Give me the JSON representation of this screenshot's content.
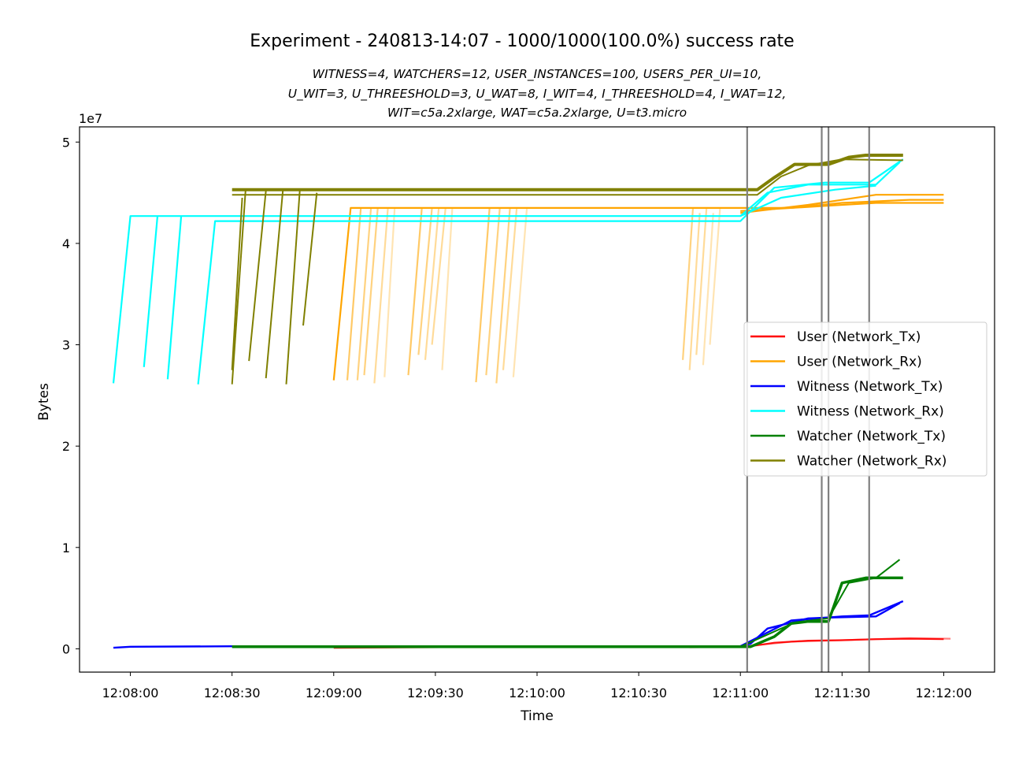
{
  "chart_data": {
    "type": "line",
    "title": "Experiment - 240813-14:07 - 1000/1000(100.0%) success rate",
    "subtitle_lines": [
      "WITNESS=4, WATCHERS=12, USER_INSTANCES=100, USERS_PER_UI=10,",
      "U_WIT=3, U_THREESHOLD=3, U_WAT=8, I_WIT=4, I_THREESHOLD=4, I_WAT=12,",
      "WIT=c5a.2xlarge, WAT=c5a.2xlarge, U=t3.micro"
    ],
    "xlabel": "Time",
    "ylabel": "Bytes",
    "y_offset_label": "1e7",
    "xlim": [
      "12:07:45",
      "12:12:15"
    ],
    "ylim": [
      -2300000,
      51500000
    ],
    "x_ticks": [
      "12:08:00",
      "12:08:30",
      "12:09:00",
      "12:09:30",
      "12:10:00",
      "12:10:30",
      "12:11:00",
      "12:11:30",
      "12:12:00"
    ],
    "y_ticks": [
      {
        "value": 0,
        "label": "0"
      },
      {
        "value": 10000000,
        "label": "1"
      },
      {
        "value": 20000000,
        "label": "2"
      },
      {
        "value": 30000000,
        "label": "3"
      },
      {
        "value": 40000000,
        "label": "4"
      },
      {
        "value": 50000000,
        "label": "5"
      }
    ],
    "grid": false,
    "legend_position": "right",
    "vlines": [
      "12:11:02",
      "12:11:24",
      "12:11:26",
      "12:11:38"
    ],
    "vline_color": "#808080",
    "series": [
      {
        "name": "User (Network_Tx)",
        "color": "#ff0000",
        "lines": [
          {
            "w": 2.2,
            "o": 0.9,
            "pts": [
              [
                "12:09:00",
                100000
              ],
              [
                "12:10:00",
                200000
              ],
              [
                "12:11:03",
                250000
              ],
              [
                "12:11:10",
                600000
              ],
              [
                "12:11:20",
                800000
              ],
              [
                "12:11:30",
                850000
              ],
              [
                "12:11:40",
                950000
              ],
              [
                "12:11:50",
                1000000
              ],
              [
                "12:12:00",
                950000
              ]
            ]
          },
          {
            "w": 2.2,
            "o": 0.5,
            "pts": [
              [
                "12:10:45",
                150000
              ],
              [
                "12:11:00",
                200000
              ],
              [
                "12:11:15",
                700000
              ],
              [
                "12:11:35",
                900000
              ],
              [
                "12:11:50",
                1050000
              ],
              [
                "12:12:02",
                1000000
              ]
            ]
          }
        ]
      },
      {
        "name": "User (Network_Rx)",
        "color": "#ffa500",
        "lines": [
          {
            "w": 2.2,
            "o": 1.0,
            "pts": [
              [
                "12:09:00",
                26500000
              ],
              [
                "12:09:05",
                43500000
              ],
              [
                "12:11:00",
                43500000
              ],
              [
                "12:11:15",
                43500000
              ],
              [
                "12:11:30",
                44000000
              ],
              [
                "12:11:50",
                44300000
              ],
              [
                "12:12:00",
                44300000
              ]
            ]
          },
          {
            "w": 2.2,
            "o": 1.0,
            "pts": [
              [
                "12:11:00",
                43000000
              ],
              [
                "12:11:20",
                43800000
              ],
              [
                "12:11:40",
                44800000
              ],
              [
                "12:12:00",
                44800000
              ]
            ]
          },
          {
            "w": 2.2,
            "o": 1.0,
            "pts": [
              [
                "12:11:00",
                43200000
              ],
              [
                "12:11:25",
                43700000
              ],
              [
                "12:11:40",
                44000000
              ],
              [
                "12:12:00",
                44000000
              ]
            ]
          },
          {
            "w": 2.2,
            "o": 0.6,
            "pts": [
              [
                "12:09:04",
                26500000
              ],
              [
                "12:09:08",
                43500000
              ]
            ]
          },
          {
            "w": 2.2,
            "o": 0.5,
            "pts": [
              [
                "12:09:07",
                26500000
              ],
              [
                "12:09:11",
                43500000
              ]
            ]
          },
          {
            "w": 2.2,
            "o": 0.5,
            "pts": [
              [
                "12:09:09",
                27000000
              ],
              [
                "12:09:13",
                43500000
              ]
            ]
          },
          {
            "w": 2.2,
            "o": 0.4,
            "pts": [
              [
                "12:09:12",
                26200000
              ],
              [
                "12:09:16",
                43500000
              ]
            ]
          },
          {
            "w": 2.2,
            "o": 0.3,
            "pts": [
              [
                "12:09:15",
                26800000
              ],
              [
                "12:09:18",
                43500000
              ]
            ]
          },
          {
            "w": 2.2,
            "o": 0.6,
            "pts": [
              [
                "12:09:22",
                27000000
              ],
              [
                "12:09:26",
                43500000
              ]
            ]
          },
          {
            "w": 2.2,
            "o": 0.5,
            "pts": [
              [
                "12:09:25",
                29000000
              ],
              [
                "12:09:29",
                43500000
              ]
            ]
          },
          {
            "w": 2.2,
            "o": 0.4,
            "pts": [
              [
                "12:09:27",
                28500000
              ],
              [
                "12:09:31",
                43500000
              ]
            ]
          },
          {
            "w": 2.2,
            "o": 0.4,
            "pts": [
              [
                "12:09:29",
                30000000
              ],
              [
                "12:09:33",
                43500000
              ]
            ]
          },
          {
            "w": 2.2,
            "o": 0.3,
            "pts": [
              [
                "12:09:32",
                27500000
              ],
              [
                "12:09:35",
                43500000
              ]
            ]
          },
          {
            "w": 2.2,
            "o": 0.6,
            "pts": [
              [
                "12:09:42",
                26300000
              ],
              [
                "12:09:46",
                43500000
              ]
            ]
          },
          {
            "w": 2.2,
            "o": 0.5,
            "pts": [
              [
                "12:09:45",
                27000000
              ],
              [
                "12:09:49",
                43500000
              ]
            ]
          },
          {
            "w": 2.2,
            "o": 0.5,
            "pts": [
              [
                "12:09:48",
                26200000
              ],
              [
                "12:09:52",
                43500000
              ]
            ]
          },
          {
            "w": 2.2,
            "o": 0.4,
            "pts": [
              [
                "12:09:50",
                27500000
              ],
              [
                "12:09:54",
                43500000
              ]
            ]
          },
          {
            "w": 2.2,
            "o": 0.3,
            "pts": [
              [
                "12:09:53",
                26800000
              ],
              [
                "12:09:57",
                43500000
              ]
            ]
          },
          {
            "w": 2.2,
            "o": 0.5,
            "pts": [
              [
                "12:10:43",
                28500000
              ],
              [
                "12:10:46",
                43500000
              ]
            ]
          },
          {
            "w": 2.2,
            "o": 0.4,
            "pts": [
              [
                "12:10:45",
                27500000
              ],
              [
                "12:10:48",
                43000000
              ]
            ]
          },
          {
            "w": 2.2,
            "o": 0.4,
            "pts": [
              [
                "12:10:47",
                29000000
              ],
              [
                "12:10:50",
                43500000
              ]
            ]
          },
          {
            "w": 2.2,
            "o": 0.3,
            "pts": [
              [
                "12:10:49",
                28000000
              ],
              [
                "12:10:52",
                43000000
              ]
            ]
          },
          {
            "w": 2.2,
            "o": 0.3,
            "pts": [
              [
                "12:10:51",
                30000000
              ],
              [
                "12:10:54",
                43500000
              ]
            ]
          }
        ]
      },
      {
        "name": "Witness (Network_Tx)",
        "color": "#0000ff",
        "lines": [
          {
            "w": 2.4,
            "o": 1.0,
            "pts": [
              [
                "12:07:55",
                100000
              ],
              [
                "12:08:00",
                200000
              ],
              [
                "12:08:30",
                250000
              ],
              [
                "12:11:00",
                250000
              ],
              [
                "12:11:03",
                500000
              ],
              [
                "12:11:08",
                2000000
              ],
              [
                "12:11:20",
                3000000
              ],
              [
                "12:11:28",
                3100000
              ],
              [
                "12:11:40",
                3200000
              ],
              [
                "12:11:47",
                4500000
              ]
            ]
          },
          {
            "w": 2.4,
            "o": 1.0,
            "pts": [
              [
                "12:11:00",
                250000
              ],
              [
                "12:11:15",
                2800000
              ],
              [
                "12:11:30",
                3200000
              ],
              [
                "12:11:38",
                3300000
              ],
              [
                "12:11:48",
                4700000
              ]
            ]
          }
        ]
      },
      {
        "name": "Witness (Network_Rx)",
        "color": "#00ffff",
        "lines": [
          {
            "w": 2.2,
            "o": 1.0,
            "pts": [
              [
                "12:07:55",
                26200000
              ],
              [
                "12:08:00",
                42700000
              ],
              [
                "12:11:00",
                42700000
              ],
              [
                "12:11:08",
                45000000
              ],
              [
                "12:11:20",
                45800000
              ],
              [
                "12:11:40",
                45800000
              ],
              [
                "12:11:47",
                48000000
              ]
            ]
          },
          {
            "w": 2.2,
            "o": 1.0,
            "pts": [
              [
                "12:08:04",
                27800000
              ],
              [
                "12:08:08",
                42700000
              ]
            ]
          },
          {
            "w": 2.2,
            "o": 1.0,
            "pts": [
              [
                "12:08:11",
                26600000
              ],
              [
                "12:08:15",
                42700000
              ]
            ]
          },
          {
            "w": 2.2,
            "o": 1.0,
            "pts": [
              [
                "12:08:20",
                26100000
              ],
              [
                "12:08:25",
                42200000
              ],
              [
                "12:11:00",
                42200000
              ],
              [
                "12:11:10",
                45500000
              ],
              [
                "12:11:25",
                46000000
              ],
              [
                "12:11:38",
                46000000
              ],
              [
                "12:11:48",
                48300000
              ]
            ]
          },
          {
            "w": 2.2,
            "o": 1.0,
            "pts": [
              [
                "12:11:00",
                42700000
              ],
              [
                "12:11:12",
                44500000
              ],
              [
                "12:11:28",
                45300000
              ],
              [
                "12:11:40",
                45700000
              ]
            ]
          }
        ]
      },
      {
        "name": "Watcher (Network_Tx)",
        "color": "#008000",
        "lines": [
          {
            "w": 3.5,
            "o": 1.0,
            "pts": [
              [
                "12:08:30",
                200000
              ],
              [
                "12:11:03",
                200000
              ],
              [
                "12:11:10",
                1200000
              ],
              [
                "12:11:15",
                2500000
              ],
              [
                "12:11:20",
                2700000
              ],
              [
                "12:11:26",
                2700000
              ],
              [
                "12:11:30",
                6500000
              ],
              [
                "12:11:37",
                7000000
              ],
              [
                "12:11:48",
                7000000
              ]
            ]
          },
          {
            "w": 2.0,
            "o": 1.0,
            "pts": [
              [
                "12:11:00",
                200000
              ],
              [
                "12:11:16",
                2600000
              ],
              [
                "12:11:26",
                3000000
              ],
              [
                "12:11:32",
                6500000
              ],
              [
                "12:11:40",
                7000000
              ],
              [
                "12:11:47",
                8800000
              ]
            ]
          }
        ]
      },
      {
        "name": "Watcher (Network_Rx)",
        "color": "#808000",
        "lines": [
          {
            "w": 4.0,
            "o": 1.0,
            "pts": [
              [
                "12:08:30",
                45300000
              ],
              [
                "12:11:05",
                45300000
              ],
              [
                "12:11:10",
                46500000
              ],
              [
                "12:11:16",
                47800000
              ],
              [
                "12:11:26",
                47800000
              ],
              [
                "12:11:32",
                48500000
              ],
              [
                "12:11:37",
                48700000
              ],
              [
                "12:11:48",
                48700000
              ]
            ]
          },
          {
            "w": 2.0,
            "o": 1.0,
            "pts": [
              [
                "12:08:30",
                44800000
              ],
              [
                "12:11:05",
                44800000
              ],
              [
                "12:11:12",
                46600000
              ],
              [
                "12:11:20",
                47700000
              ],
              [
                "12:11:30",
                48300000
              ],
              [
                "12:11:48",
                48200000
              ]
            ]
          },
          {
            "w": 2.0,
            "o": 1.0,
            "pts": [
              [
                "12:08:30",
                26100000
              ],
              [
                "12:08:34",
                45300000
              ]
            ]
          },
          {
            "w": 2.0,
            "o": 1.0,
            "pts": [
              [
                "12:08:35",
                28400000
              ],
              [
                "12:08:40",
                45200000
              ]
            ]
          },
          {
            "w": 2.0,
            "o": 1.0,
            "pts": [
              [
                "12:08:40",
                26700000
              ],
              [
                "12:08:45",
                45200000
              ]
            ]
          },
          {
            "w": 2.0,
            "o": 1.0,
            "pts": [
              [
                "12:08:46",
                26100000
              ],
              [
                "12:08:50",
                45200000
              ]
            ]
          },
          {
            "w": 2.0,
            "o": 1.0,
            "pts": [
              [
                "12:08:51",
                31900000
              ],
              [
                "12:08:55",
                45000000
              ]
            ]
          },
          {
            "w": 2.0,
            "o": 1.0,
            "pts": [
              [
                "12:08:30",
                27500000
              ],
              [
                "12:08:33",
                44500000
              ]
            ]
          }
        ]
      }
    ]
  }
}
